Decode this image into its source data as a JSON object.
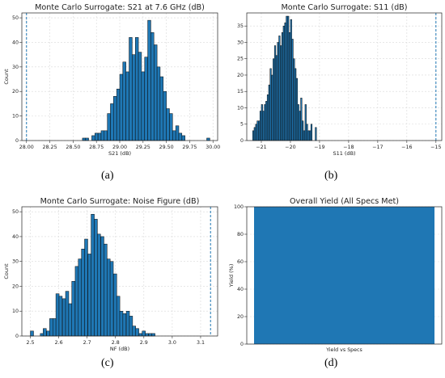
{
  "panel_labels": [
    "(a)",
    "(b)",
    "(c)",
    "(d)"
  ],
  "colors": {
    "bar": "#1f77b4",
    "bar_edge": "#0a0a0a",
    "spec_line": "#1f77b4",
    "grid": "#d9d9d9"
  },
  "chart_data": [
    {
      "type": "bar",
      "title": "Monte Carlo Surrogate: S21 at 7.6 GHz (dB)",
      "xlabel": "S21 (dB)",
      "ylabel": "Count",
      "xlim": [
        27.95,
        30.05
      ],
      "ylim": [
        0,
        52
      ],
      "xticks": [
        "28.00",
        "28.25",
        "28.50",
        "28.75",
        "29.00",
        "29.25",
        "29.50",
        "29.75",
        "30.00"
      ],
      "xtick_values": [
        28.0,
        28.25,
        28.5,
        28.75,
        29.0,
        29.25,
        29.5,
        29.75,
        30.0
      ],
      "yticks": [
        0,
        10,
        20,
        30,
        40,
        50
      ],
      "grid": true,
      "bin_width": 0.0333,
      "bins": [
        [
          28.6,
          1
        ],
        [
          28.633,
          1
        ],
        [
          28.7,
          2
        ],
        [
          28.733,
          3
        ],
        [
          28.767,
          3
        ],
        [
          28.8,
          4
        ],
        [
          28.833,
          4
        ],
        [
          28.867,
          11
        ],
        [
          28.9,
          15
        ],
        [
          28.933,
          18
        ],
        [
          28.967,
          21
        ],
        [
          29.0,
          27
        ],
        [
          29.033,
          32
        ],
        [
          29.067,
          28
        ],
        [
          29.1,
          42
        ],
        [
          29.133,
          35
        ],
        [
          29.167,
          42
        ],
        [
          29.2,
          36
        ],
        [
          29.233,
          28
        ],
        [
          29.267,
          34
        ],
        [
          29.3,
          49
        ],
        [
          29.333,
          44
        ],
        [
          29.367,
          39
        ],
        [
          29.4,
          30
        ],
        [
          29.433,
          26
        ],
        [
          29.467,
          20
        ],
        [
          29.5,
          13
        ],
        [
          29.533,
          11
        ],
        [
          29.567,
          4
        ],
        [
          29.6,
          6
        ],
        [
          29.633,
          3
        ],
        [
          29.667,
          2
        ],
        [
          29.933,
          1
        ]
      ],
      "spec_line": 28.0
    },
    {
      "type": "bar",
      "title": "Monte Carlo Surrogate: S11 (dB)",
      "xlabel": "S11 (dB)",
      "ylabel": "",
      "xlim": [
        -21.5,
        -14.8
      ],
      "ylim": [
        0,
        39
      ],
      "xticks": [
        "−21",
        "−20",
        "−19",
        "−18",
        "−17",
        "−16",
        "−15"
      ],
      "xtick_values": [
        -21,
        -20,
        -19,
        -18,
        -17,
        -16,
        -15
      ],
      "yticks": [
        0,
        5,
        10,
        15,
        20,
        25,
        30,
        35
      ],
      "grid": true,
      "bin_width": 0.046,
      "bins": [
        [
          -21.3,
          3
        ],
        [
          -21.25,
          4
        ],
        [
          -21.2,
          5
        ],
        [
          -21.15,
          6
        ],
        [
          -21.1,
          6
        ],
        [
          -21.05,
          9
        ],
        [
          -21.0,
          11
        ],
        [
          -20.95,
          9
        ],
        [
          -20.9,
          11
        ],
        [
          -20.85,
          12
        ],
        [
          -20.8,
          14
        ],
        [
          -20.75,
          17
        ],
        [
          -20.7,
          22
        ],
        [
          -20.65,
          20
        ],
        [
          -20.6,
          25
        ],
        [
          -20.55,
          29
        ],
        [
          -20.5,
          26
        ],
        [
          -20.45,
          30
        ],
        [
          -20.4,
          32
        ],
        [
          -20.35,
          29
        ],
        [
          -20.3,
          33
        ],
        [
          -20.25,
          35
        ],
        [
          -20.2,
          36
        ],
        [
          -20.15,
          38
        ],
        [
          -20.1,
          38
        ],
        [
          -20.05,
          33
        ],
        [
          -20.0,
          37
        ],
        [
          -19.95,
          31
        ],
        [
          -19.9,
          25
        ],
        [
          -19.85,
          22
        ],
        [
          -19.8,
          19
        ],
        [
          -19.75,
          11
        ],
        [
          -19.7,
          9
        ],
        [
          -19.65,
          13
        ],
        [
          -19.6,
          6
        ],
        [
          -19.55,
          3
        ],
        [
          -19.5,
          11
        ],
        [
          -19.45,
          5
        ],
        [
          -19.4,
          3
        ],
        [
          -19.35,
          3
        ],
        [
          -19.3,
          5
        ],
        [
          -19.15,
          4
        ]
      ],
      "spec_line": -15.0
    },
    {
      "type": "bar",
      "title": "Monte Carlo Surrogate: Noise Figure (dB)",
      "xlabel": "NF (dB)",
      "ylabel": "Count",
      "xlim": [
        2.47,
        3.16
      ],
      "ylim": [
        0,
        52
      ],
      "xticks": [
        "2.5",
        "2.6",
        "2.7",
        "2.8",
        "2.9",
        "3.0",
        "3.1"
      ],
      "xtick_values": [
        2.5,
        2.6,
        2.7,
        2.8,
        2.9,
        3.0,
        3.1
      ],
      "yticks": [
        0,
        10,
        20,
        30,
        40,
        50
      ],
      "grid": true,
      "bin_width": 0.0113,
      "bins": [
        [
          2.5,
          2
        ],
        [
          2.535,
          1
        ],
        [
          2.545,
          3
        ],
        [
          2.557,
          2
        ],
        [
          2.568,
          7
        ],
        [
          2.579,
          7
        ],
        [
          2.59,
          17
        ],
        [
          2.601,
          16
        ],
        [
          2.613,
          15
        ],
        [
          2.624,
          18
        ],
        [
          2.635,
          13
        ],
        [
          2.646,
          22
        ],
        [
          2.658,
          28
        ],
        [
          2.669,
          31
        ],
        [
          2.68,
          35
        ],
        [
          2.691,
          39
        ],
        [
          2.703,
          33
        ],
        [
          2.714,
          49
        ],
        [
          2.725,
          47
        ],
        [
          2.736,
          41
        ],
        [
          2.748,
          40
        ],
        [
          2.759,
          37
        ],
        [
          2.77,
          31
        ],
        [
          2.781,
          30
        ],
        [
          2.793,
          25
        ],
        [
          2.804,
          16
        ],
        [
          2.815,
          10
        ],
        [
          2.826,
          9
        ],
        [
          2.838,
          10
        ],
        [
          2.849,
          8
        ],
        [
          2.86,
          4
        ],
        [
          2.871,
          3
        ],
        [
          2.883,
          1
        ],
        [
          2.894,
          2
        ],
        [
          2.905,
          1
        ],
        [
          2.917,
          1
        ],
        [
          2.928,
          1
        ]
      ],
      "spec_line": 3.135
    },
    {
      "type": "bar",
      "title": "Overall Yield (All Specs Met)",
      "categories": [
        "Yield vs Specs"
      ],
      "values": [
        100
      ],
      "xlabel": "",
      "ylabel": "Yield (%)",
      "ylim": [
        0,
        100
      ],
      "yticks": [
        0,
        20,
        40,
        60,
        80,
        100
      ],
      "grid": true
    }
  ]
}
